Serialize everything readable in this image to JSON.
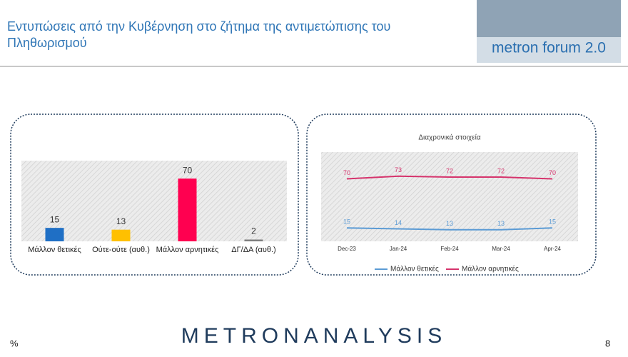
{
  "header": {
    "title_line1": "Εντυπώσεις από την Κυβέρνηση στο ζήτημα της αντιμετώπισης του",
    "title_line2": "Πληθωρισμού",
    "logo": "metron forum 2.0"
  },
  "footer": {
    "unit": "%",
    "brand": "METRONANALYSIS",
    "page": "8"
  },
  "chart_data": [
    {
      "type": "bar",
      "categories": [
        "Μάλλον θετικές",
        "Ούτε-ούτε (αυθ.)",
        "Μάλλον αρνητικές",
        "ΔΓ/ΔΑ (αυθ.)"
      ],
      "values": [
        15,
        13,
        70,
        2
      ],
      "colors": [
        "#1f6fc5",
        "#ffc000",
        "#ff0050",
        "#7f7f7f"
      ],
      "ylim": [
        0,
        90
      ]
    },
    {
      "type": "line",
      "title": "Διαχρονικά στοιχεία",
      "categories": [
        "Dec-23",
        "Jan-24",
        "Feb-24",
        "Mar-24",
        "Apr-24"
      ],
      "series": [
        {
          "name": "Μάλλον θετικές",
          "color": "#5b9bd5",
          "values": [
            15,
            14,
            13,
            13,
            15
          ]
        },
        {
          "name": "Μάλλον αρνητικές",
          "color": "#d6336c",
          "values": [
            70,
            73,
            72,
            72,
            70
          ]
        }
      ],
      "ylim": [
        0,
        100
      ],
      "legend": "bottom"
    }
  ]
}
